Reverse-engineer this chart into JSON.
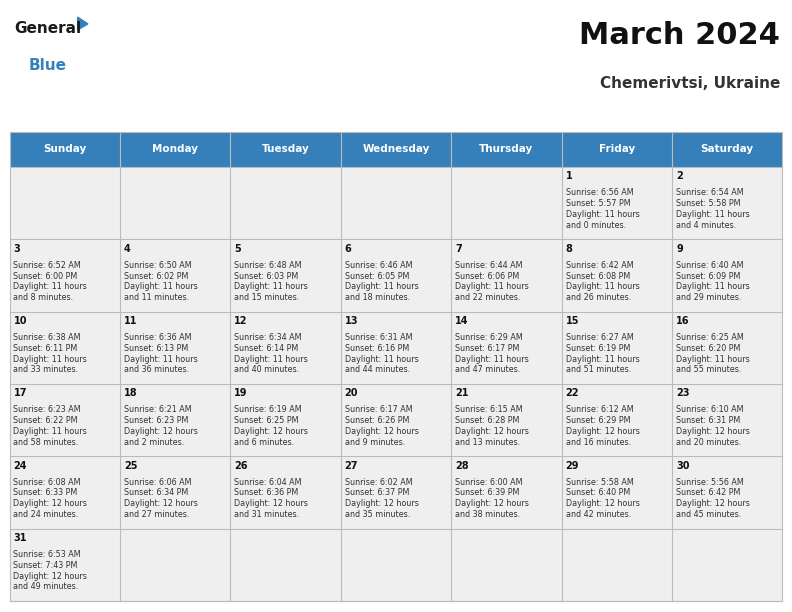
{
  "title": "March 2024",
  "subtitle": "Chemerivtsi, Ukraine",
  "header_color": "#3580BA",
  "header_text_color": "#FFFFFF",
  "days_of_week": [
    "Sunday",
    "Monday",
    "Tuesday",
    "Wednesday",
    "Thursday",
    "Friday",
    "Saturday"
  ],
  "bg_color": "#FFFFFF",
  "cell_bg_color": "#EFEFEF",
  "grid_line_color": "#BBBBBB",
  "title_color": "#111111",
  "subtitle_color": "#333333",
  "day_num_color": "#111111",
  "cell_text_color": "#333333",
  "calendar": [
    [
      {
        "day": "",
        "sunrise": "",
        "sunset": "",
        "daylight": ""
      },
      {
        "day": "",
        "sunrise": "",
        "sunset": "",
        "daylight": ""
      },
      {
        "day": "",
        "sunrise": "",
        "sunset": "",
        "daylight": ""
      },
      {
        "day": "",
        "sunrise": "",
        "sunset": "",
        "daylight": ""
      },
      {
        "day": "",
        "sunrise": "",
        "sunset": "",
        "daylight": ""
      },
      {
        "day": "1",
        "sunrise": "6:56 AM",
        "sunset": "5:57 PM",
        "daylight": "11 hours\nand 0 minutes."
      },
      {
        "day": "2",
        "sunrise": "6:54 AM",
        "sunset": "5:58 PM",
        "daylight": "11 hours\nand 4 minutes."
      }
    ],
    [
      {
        "day": "3",
        "sunrise": "6:52 AM",
        "sunset": "6:00 PM",
        "daylight": "11 hours\nand 8 minutes."
      },
      {
        "day": "4",
        "sunrise": "6:50 AM",
        "sunset": "6:02 PM",
        "daylight": "11 hours\nand 11 minutes."
      },
      {
        "day": "5",
        "sunrise": "6:48 AM",
        "sunset": "6:03 PM",
        "daylight": "11 hours\nand 15 minutes."
      },
      {
        "day": "6",
        "sunrise": "6:46 AM",
        "sunset": "6:05 PM",
        "daylight": "11 hours\nand 18 minutes."
      },
      {
        "day": "7",
        "sunrise": "6:44 AM",
        "sunset": "6:06 PM",
        "daylight": "11 hours\nand 22 minutes."
      },
      {
        "day": "8",
        "sunrise": "6:42 AM",
        "sunset": "6:08 PM",
        "daylight": "11 hours\nand 26 minutes."
      },
      {
        "day": "9",
        "sunrise": "6:40 AM",
        "sunset": "6:09 PM",
        "daylight": "11 hours\nand 29 minutes."
      }
    ],
    [
      {
        "day": "10",
        "sunrise": "6:38 AM",
        "sunset": "6:11 PM",
        "daylight": "11 hours\nand 33 minutes."
      },
      {
        "day": "11",
        "sunrise": "6:36 AM",
        "sunset": "6:13 PM",
        "daylight": "11 hours\nand 36 minutes."
      },
      {
        "day": "12",
        "sunrise": "6:34 AM",
        "sunset": "6:14 PM",
        "daylight": "11 hours\nand 40 minutes."
      },
      {
        "day": "13",
        "sunrise": "6:31 AM",
        "sunset": "6:16 PM",
        "daylight": "11 hours\nand 44 minutes."
      },
      {
        "day": "14",
        "sunrise": "6:29 AM",
        "sunset": "6:17 PM",
        "daylight": "11 hours\nand 47 minutes."
      },
      {
        "day": "15",
        "sunrise": "6:27 AM",
        "sunset": "6:19 PM",
        "daylight": "11 hours\nand 51 minutes."
      },
      {
        "day": "16",
        "sunrise": "6:25 AM",
        "sunset": "6:20 PM",
        "daylight": "11 hours\nand 55 minutes."
      }
    ],
    [
      {
        "day": "17",
        "sunrise": "6:23 AM",
        "sunset": "6:22 PM",
        "daylight": "11 hours\nand 58 minutes."
      },
      {
        "day": "18",
        "sunrise": "6:21 AM",
        "sunset": "6:23 PM",
        "daylight": "12 hours\nand 2 minutes."
      },
      {
        "day": "19",
        "sunrise": "6:19 AM",
        "sunset": "6:25 PM",
        "daylight": "12 hours\nand 6 minutes."
      },
      {
        "day": "20",
        "sunrise": "6:17 AM",
        "sunset": "6:26 PM",
        "daylight": "12 hours\nand 9 minutes."
      },
      {
        "day": "21",
        "sunrise": "6:15 AM",
        "sunset": "6:28 PM",
        "daylight": "12 hours\nand 13 minutes."
      },
      {
        "day": "22",
        "sunrise": "6:12 AM",
        "sunset": "6:29 PM",
        "daylight": "12 hours\nand 16 minutes."
      },
      {
        "day": "23",
        "sunrise": "6:10 AM",
        "sunset": "6:31 PM",
        "daylight": "12 hours\nand 20 minutes."
      }
    ],
    [
      {
        "day": "24",
        "sunrise": "6:08 AM",
        "sunset": "6:33 PM",
        "daylight": "12 hours\nand 24 minutes."
      },
      {
        "day": "25",
        "sunrise": "6:06 AM",
        "sunset": "6:34 PM",
        "daylight": "12 hours\nand 27 minutes."
      },
      {
        "day": "26",
        "sunrise": "6:04 AM",
        "sunset": "6:36 PM",
        "daylight": "12 hours\nand 31 minutes."
      },
      {
        "day": "27",
        "sunrise": "6:02 AM",
        "sunset": "6:37 PM",
        "daylight": "12 hours\nand 35 minutes."
      },
      {
        "day": "28",
        "sunrise": "6:00 AM",
        "sunset": "6:39 PM",
        "daylight": "12 hours\nand 38 minutes."
      },
      {
        "day": "29",
        "sunrise": "5:58 AM",
        "sunset": "6:40 PM",
        "daylight": "12 hours\nand 42 minutes."
      },
      {
        "day": "30",
        "sunrise": "5:56 AM",
        "sunset": "6:42 PM",
        "daylight": "12 hours\nand 45 minutes."
      }
    ],
    [
      {
        "day": "31",
        "sunrise": "6:53 AM",
        "sunset": "7:43 PM",
        "daylight": "12 hours\nand 49 minutes."
      },
      {
        "day": "",
        "sunrise": "",
        "sunset": "",
        "daylight": ""
      },
      {
        "day": "",
        "sunrise": "",
        "sunset": "",
        "daylight": ""
      },
      {
        "day": "",
        "sunrise": "",
        "sunset": "",
        "daylight": ""
      },
      {
        "day": "",
        "sunrise": "",
        "sunset": "",
        "daylight": ""
      },
      {
        "day": "",
        "sunrise": "",
        "sunset": "",
        "daylight": ""
      },
      {
        "day": "",
        "sunrise": "",
        "sunset": "",
        "daylight": ""
      }
    ]
  ]
}
